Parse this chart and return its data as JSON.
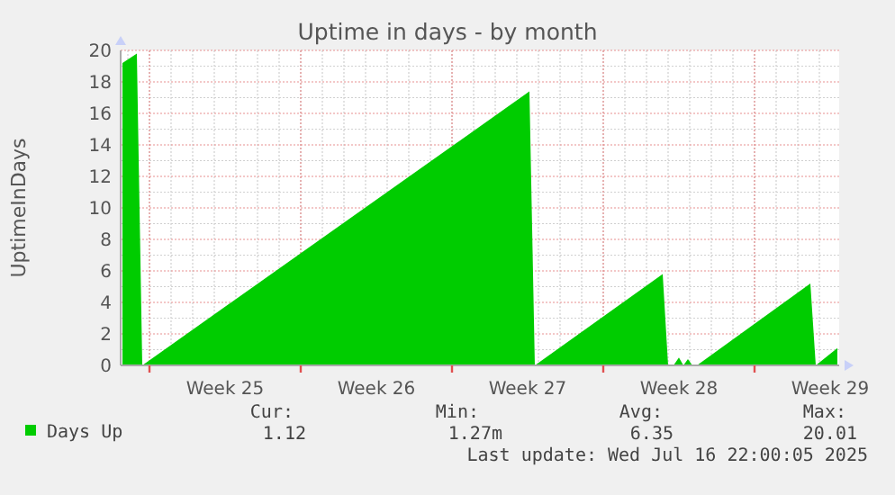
{
  "chart_data": {
    "type": "area",
    "title": "Uptime in days - by month",
    "ylabel": "UptimeInDays",
    "x": [
      "2025-06-13T18:00",
      "2025-06-14T10:00",
      "2025-06-14T16:00",
      "2025-07-02T14:00",
      "2025-07-02T20:00",
      "2025-07-08T18:00",
      "2025-07-09T00:00",
      "2025-07-09T06:00",
      "2025-07-09T12:00",
      "2025-07-09T17:00",
      "2025-07-09T22:00",
      "2025-07-10T03:00",
      "2025-07-10T08:00",
      "2025-07-15T14:00",
      "2025-07-15T20:00",
      "2025-07-16T20:00"
    ],
    "series": [
      {
        "name": "Days Up",
        "color": "#00cc00",
        "values": [
          19.2,
          19.8,
          0,
          17.4,
          0,
          5.8,
          0,
          0,
          0.5,
          0,
          0.4,
          0,
          0,
          5.2,
          0,
          1.1
        ]
      }
    ],
    "xlim": [
      "2025-06-13T16:00",
      "2025-07-16T22:00"
    ],
    "xticks": [
      {
        "value": "2025-06-18T12:00",
        "label": "Week 25"
      },
      {
        "value": "2025-06-25T12:00",
        "label": "Week 26"
      },
      {
        "value": "2025-07-02T12:00",
        "label": "Week 27"
      },
      {
        "value": "2025-07-09T12:00",
        "label": "Week 28"
      },
      {
        "value": "2025-07-16T12:00",
        "label": "Week 29"
      }
    ],
    "ylim": [
      0,
      20
    ],
    "yticks": [
      0,
      2,
      4,
      6,
      8,
      10,
      12,
      14,
      16,
      18,
      20
    ],
    "grid": true,
    "legend": "bottom left",
    "annotations": [
      "Cur:",
      "Min:",
      "Avg:",
      "Max:",
      "1.12",
      "1.27m",
      "6.35",
      "20.01",
      "Last update: Wed Jul 16 22:00:05 2025"
    ]
  }
}
